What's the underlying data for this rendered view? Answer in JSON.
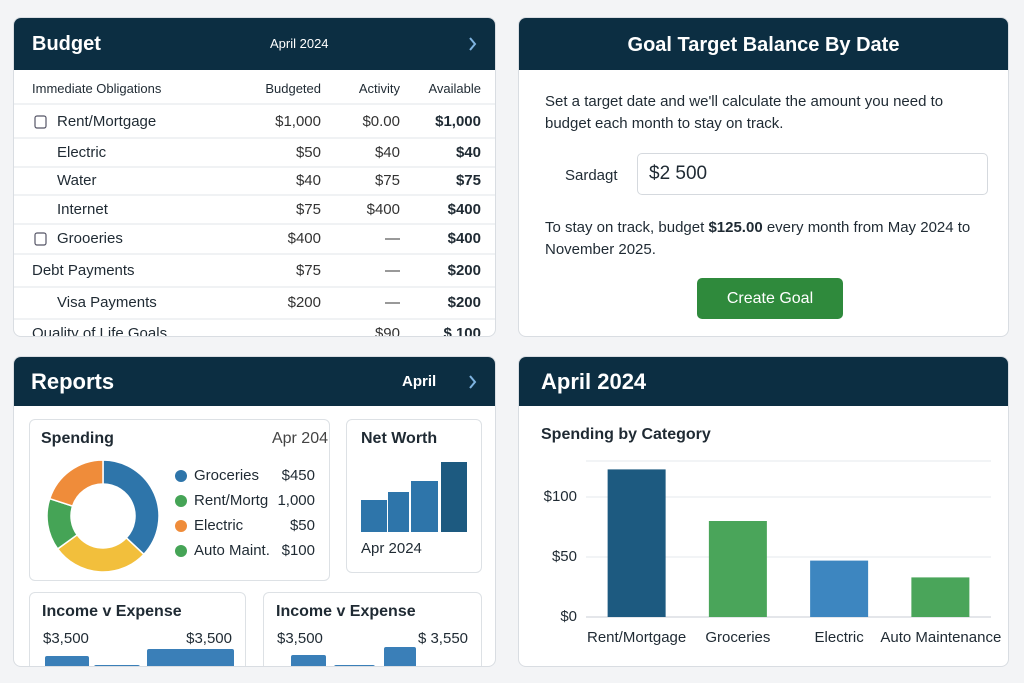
{
  "budget": {
    "title": "Budget",
    "month": "April 2024",
    "columns": [
      "Immediate Obligations",
      "Budgeted",
      "Activity",
      "Available"
    ],
    "rows": [
      {
        "name": "Rent/Mortgage",
        "budgeted": "$1,000",
        "activity": "$0.00",
        "available": "$1,000"
      },
      {
        "name": "Electric",
        "budgeted": "$50",
        "activity": "$40",
        "available": "$40"
      },
      {
        "name": "Water",
        "budgeted": "$40",
        "activity": "$75",
        "available": "$75"
      },
      {
        "name": "Internet",
        "budgeted": "$75",
        "activity": "$400",
        "available": "$400"
      },
      {
        "name": "Grooeries",
        "budgeted": "$400",
        "activity": "—",
        "available": "$400"
      },
      {
        "name": "Debt Payments",
        "budgeted": "$75",
        "activity": "—",
        "available": "$200"
      },
      {
        "name": "Visa Payments",
        "budgeted": "$200",
        "activity": "—",
        "available": "$200"
      },
      {
        "name": "Quality of Life Goals",
        "activity": "$90",
        "available": "$ 100"
      }
    ]
  },
  "goal": {
    "title": "Goal Target Balance By Date",
    "description": "Set a target date and we'll calculate the amount you need to budget each month to stay on track.",
    "field_label": "Sardagt",
    "field_value": "$2 500",
    "summary_before": "To stay on track, budget",
    "summary_amount": "$125.00",
    "summary_after": "every month from May 2024 to November 2025.",
    "button": "Create Goal"
  },
  "reports": {
    "title": "Reports",
    "month": "April",
    "spending": {
      "title": "Spending",
      "date": "Apr 204",
      "donut": {
        "type": "pie",
        "values": [
          37,
          28,
          15,
          20
        ],
        "colors": [
          "#2e75aa",
          "#f2bf3c",
          "#45a456",
          "#ef8c3a"
        ]
      },
      "legend": [
        {
          "label": "Groceries",
          "amount": "$450",
          "color": "#2e75aa"
        },
        {
          "label": "Rent/Mortg",
          "amount": "1,000",
          "color": "#45a456"
        },
        {
          "label": "Electric",
          "amount": "$50",
          "color": "#ef8c3a"
        },
        {
          "label": "Auto Maint.",
          "amount": "$100",
          "color": "#45a456"
        }
      ]
    },
    "net_worth": {
      "title": "Net Worth",
      "label": "Apr 2024",
      "chart": {
        "type": "bar",
        "values": [
          32,
          40,
          51,
          70
        ],
        "colors": [
          "#2e75aa",
          "#2e75aa",
          "#2e75aa",
          "#1d5a80"
        ]
      }
    },
    "income_expense": [
      {
        "title": "Income v Expense",
        "left": "$3,500",
        "right": "$3,500",
        "chart": {
          "type": "bar",
          "values": [
            12,
            3,
            19
          ],
          "color": "#3a7fb8"
        }
      },
      {
        "title": "Income v Expense",
        "left": "$3,500",
        "right": "$ 3,550",
        "chart": {
          "type": "bar",
          "values": [
            13,
            3,
            21
          ],
          "color": "#3a7fb8"
        }
      }
    ]
  },
  "category_report": {
    "title": "April 2024",
    "chart_data": {
      "type": "bar",
      "title": "Spending by Category",
      "categories": [
        "Rent/Mortgage",
        "Groceries",
        "Electric",
        "Auto Maintenance"
      ],
      "values": [
        123,
        80,
        47,
        33
      ],
      "colors": [
        "#1d5a80",
        "#4aa55a",
        "#3d86c0",
        "#4aa55a"
      ],
      "ylim": [
        0,
        130
      ],
      "yticks": [
        {
          "value": 0,
          "label": "$0"
        },
        {
          "value": 50,
          "label": "$50"
        },
        {
          "value": 100,
          "label": "$100"
        }
      ],
      "grid": true
    }
  }
}
